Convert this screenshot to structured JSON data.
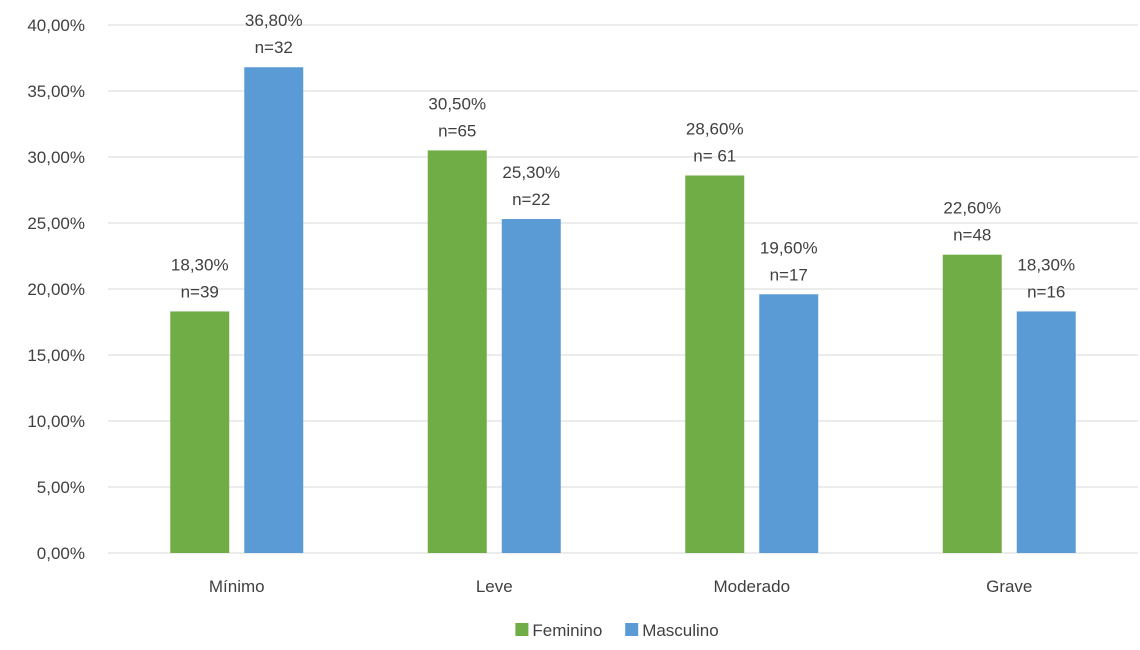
{
  "chart_data": {
    "type": "bar",
    "title": "",
    "xlabel": "",
    "ylabel": "",
    "ylim": [
      0,
      40
    ],
    "y_ticks": [
      "0,00%",
      "5,00%",
      "10,00%",
      "15,00%",
      "20,00%",
      "25,00%",
      "30,00%",
      "35,00%",
      "40,00%"
    ],
    "grid": true,
    "legend_position": "bottom",
    "categories": [
      "Mínimo",
      "Leve",
      "Moderado",
      "Grave"
    ],
    "series": [
      {
        "name": "Feminino",
        "color": "#70ad47",
        "values": [
          18.3,
          30.5,
          28.6,
          22.6
        ],
        "labels": [
          [
            "18,30%",
            "n=39"
          ],
          [
            "30,50%",
            "n=65"
          ],
          [
            "28,60%",
            "n= 61"
          ],
          [
            "22,60%",
            "n=48"
          ]
        ]
      },
      {
        "name": "Masculino",
        "color": "#5b9bd5",
        "values": [
          36.8,
          25.3,
          19.6,
          18.3
        ],
        "labels": [
          [
            "36,80%",
            "n=32"
          ],
          [
            "25,30%",
            "n=22"
          ],
          [
            "19,60%",
            "n=17"
          ],
          [
            "18,30%",
            "n=16"
          ]
        ]
      }
    ]
  }
}
